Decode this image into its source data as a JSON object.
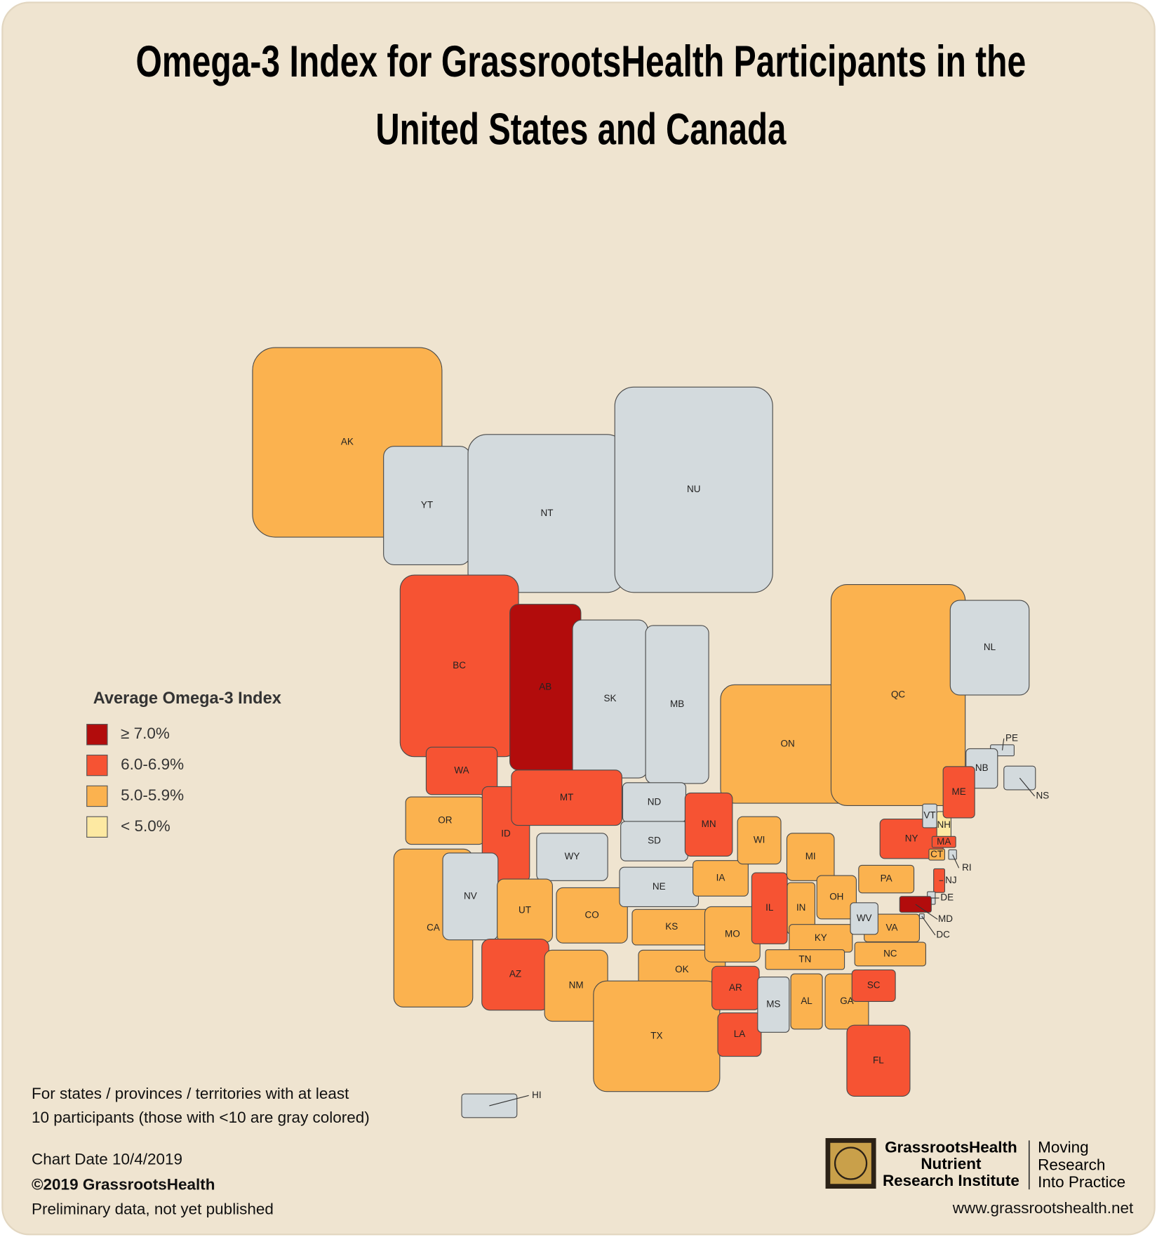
{
  "title": [
    "Omega-3 Index for GrassrootsHealth Participants in the",
    "United States and Canada"
  ],
  "legend": {
    "title": "Average Omega-3 Index",
    "classes": [
      {
        "label": "≥ 7.0%",
        "color": "#b20c0c"
      },
      {
        "label": "6.0-6.9%",
        "color": "#f65333"
      },
      {
        "label": "5.0-5.9%",
        "color": "#fbb24f"
      },
      {
        "label": "< 5.0%",
        "color": "#fde9a2"
      }
    ]
  },
  "insufficient_color": "#d3dadd",
  "regions": [
    {
      "code": "AK",
      "class": 2
    },
    {
      "code": "YT",
      "class": null
    },
    {
      "code": "NT",
      "class": null
    },
    {
      "code": "NU",
      "class": null
    },
    {
      "code": "BC",
      "class": 1
    },
    {
      "code": "AB",
      "class": 0
    },
    {
      "code": "SK",
      "class": null
    },
    {
      "code": "MB",
      "class": null
    },
    {
      "code": "ON",
      "class": 2
    },
    {
      "code": "QC",
      "class": 2
    },
    {
      "code": "NL",
      "class": null
    },
    {
      "code": "PE",
      "class": null
    },
    {
      "code": "NB",
      "class": null
    },
    {
      "code": "NS",
      "class": null
    },
    {
      "code": "WA",
      "class": 1
    },
    {
      "code": "OR",
      "class": 2
    },
    {
      "code": "CA",
      "class": 2
    },
    {
      "code": "ID",
      "class": 1
    },
    {
      "code": "NV",
      "class": null
    },
    {
      "code": "MT",
      "class": 1
    },
    {
      "code": "WY",
      "class": null
    },
    {
      "code": "UT",
      "class": 2
    },
    {
      "code": "CO",
      "class": 2
    },
    {
      "code": "AZ",
      "class": 1
    },
    {
      "code": "NM",
      "class": 2
    },
    {
      "code": "ND",
      "class": null
    },
    {
      "code": "SD",
      "class": null
    },
    {
      "code": "NE",
      "class": null
    },
    {
      "code": "KS",
      "class": 2
    },
    {
      "code": "OK",
      "class": 2
    },
    {
      "code": "TX",
      "class": 2
    },
    {
      "code": "MN",
      "class": 1
    },
    {
      "code": "IA",
      "class": 2
    },
    {
      "code": "MO",
      "class": 2
    },
    {
      "code": "AR",
      "class": 1
    },
    {
      "code": "LA",
      "class": 1
    },
    {
      "code": "WI",
      "class": 2
    },
    {
      "code": "IL",
      "class": 1
    },
    {
      "code": "MI",
      "class": 2
    },
    {
      "code": "IN",
      "class": 2
    },
    {
      "code": "OH",
      "class": 2
    },
    {
      "code": "KY",
      "class": 2
    },
    {
      "code": "TN",
      "class": 2
    },
    {
      "code": "MS",
      "class": null
    },
    {
      "code": "AL",
      "class": 2
    },
    {
      "code": "GA",
      "class": 2
    },
    {
      "code": "FL",
      "class": 1
    },
    {
      "code": "SC",
      "class": 1
    },
    {
      "code": "NC",
      "class": 2
    },
    {
      "code": "VA",
      "class": 2
    },
    {
      "code": "WV",
      "class": null
    },
    {
      "code": "PA",
      "class": 2
    },
    {
      "code": "NY",
      "class": 1
    },
    {
      "code": "VT",
      "class": null
    },
    {
      "code": "NH",
      "class": 3
    },
    {
      "code": "ME",
      "class": 1
    },
    {
      "code": "MA",
      "class": 1
    },
    {
      "code": "CT",
      "class": 2
    },
    {
      "code": "RI",
      "class": null
    },
    {
      "code": "NJ",
      "class": 1
    },
    {
      "code": "DE",
      "class": null
    },
    {
      "code": "MD",
      "class": 0
    },
    {
      "code": "DC",
      "class": null
    },
    {
      "code": "HI",
      "class": null
    }
  ],
  "note": [
    "For states / provinces / territories with at least",
    "10 participants (those with <10 are gray colored)"
  ],
  "chart_date": "Chart Date 10/4/2019",
  "copyright": "©2019 GrassrootsHealth",
  "status": "Preliminary data, not yet published",
  "logo": {
    "org": [
      "GrassrootsHealth",
      "Nutrient",
      "Research Institute"
    ],
    "tagline": [
      "Moving",
      "Research",
      "Into Practice"
    ]
  },
  "url": "www.grassrootshealth.net"
}
